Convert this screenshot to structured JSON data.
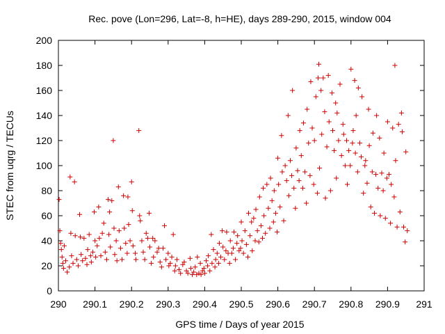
{
  "chart_data": {
    "type": "scatter",
    "title": "Rec. pove (Lon=296, Lat=-8, h=HE), days 289-290, 2015, window 004",
    "xlabel": "GPS time / Days of year 2015",
    "ylabel": "STEC from uqrg / TECUs",
    "xlim": [
      290,
      291
    ],
    "ylim": [
      0,
      200
    ],
    "x_ticks": [
      290,
      290.1,
      290.2,
      290.3,
      290.4,
      290.5,
      290.6,
      290.7,
      290.8,
      290.9,
      291
    ],
    "x_tick_labels": [
      "290",
      "290.1",
      "290.2",
      "290.3",
      "290.4",
      "290.5",
      "290.6",
      "290.7",
      "290.8",
      "290.9",
      "291"
    ],
    "y_ticks": [
      0,
      20,
      40,
      60,
      80,
      100,
      120,
      140,
      160,
      180,
      200
    ],
    "y_tick_labels": [
      "0",
      "20",
      "40",
      "60",
      "80",
      "100",
      "120",
      "140",
      "160",
      "180",
      "200"
    ],
    "grid": false,
    "marker": "plus",
    "color": "#cc0000",
    "points": [
      [
        290.002,
        73
      ],
      [
        290.004,
        48
      ],
      [
        290.006,
        38
      ],
      [
        290.008,
        33
      ],
      [
        290.01,
        27
      ],
      [
        290.012,
        22
      ],
      [
        290.014,
        18
      ],
      [
        290.016,
        36
      ],
      [
        290.02,
        24
      ],
      [
        290.024,
        15
      ],
      [
        290.03,
        19
      ],
      [
        290.032,
        91
      ],
      [
        290.034,
        46
      ],
      [
        290.036,
        28
      ],
      [
        290.04,
        22
      ],
      [
        290.044,
        87
      ],
      [
        290.046,
        44
      ],
      [
        290.05,
        25
      ],
      [
        290.054,
        20
      ],
      [
        290.058,
        61
      ],
      [
        290.06,
        43
      ],
      [
        290.062,
        29
      ],
      [
        290.066,
        24
      ],
      [
        290.07,
        42
      ],
      [
        290.074,
        26
      ],
      [
        290.078,
        21
      ],
      [
        290.08,
        33
      ],
      [
        290.084,
        45
      ],
      [
        290.088,
        28
      ],
      [
        290.09,
        23
      ],
      [
        290.094,
        31
      ],
      [
        290.098,
        63
      ],
      [
        290.1,
        40
      ],
      [
        290.102,
        27
      ],
      [
        290.106,
        36
      ],
      [
        290.11,
        67
      ],
      [
        290.112,
        42
      ],
      [
        290.116,
        28
      ],
      [
        290.12,
        46
      ],
      [
        290.124,
        54
      ],
      [
        290.128,
        31
      ],
      [
        290.132,
        25
      ],
      [
        290.136,
        73
      ],
      [
        290.138,
        45
      ],
      [
        290.14,
        63
      ],
      [
        290.142,
        35
      ],
      [
        290.146,
        72
      ],
      [
        290.15,
        120
      ],
      [
        290.152,
        50
      ],
      [
        290.154,
        29
      ],
      [
        290.158,
        40
      ],
      [
        290.16,
        24
      ],
      [
        290.164,
        83
      ],
      [
        290.166,
        48
      ],
      [
        290.17,
        34
      ],
      [
        290.174,
        25
      ],
      [
        290.178,
        76
      ],
      [
        290.18,
        50
      ],
      [
        290.184,
        38
      ],
      [
        290.188,
        30
      ],
      [
        290.19,
        75
      ],
      [
        290.192,
        53
      ],
      [
        290.196,
        40
      ],
      [
        290.2,
        87
      ],
      [
        290.202,
        64
      ],
      [
        290.204,
        36
      ],
      [
        290.21,
        30
      ],
      [
        290.212,
        25
      ],
      [
        290.22,
        128
      ],
      [
        290.222,
        60
      ],
      [
        290.224,
        56
      ],
      [
        290.228,
        40
      ],
      [
        290.232,
        31
      ],
      [
        290.236,
        25
      ],
      [
        290.24,
        46
      ],
      [
        290.244,
        42
      ],
      [
        290.248,
        62
      ],
      [
        290.25,
        35
      ],
      [
        290.254,
        22
      ],
      [
        290.258,
        42
      ],
      [
        290.26,
        27
      ],
      [
        290.264,
        40
      ],
      [
        290.27,
        31
      ],
      [
        290.274,
        34
      ],
      [
        290.278,
        23
      ],
      [
        290.282,
        19
      ],
      [
        290.286,
        34
      ],
      [
        290.29,
        52
      ],
      [
        290.294,
        25
      ],
      [
        290.3,
        30
      ],
      [
        290.302,
        20
      ],
      [
        290.306,
        22
      ],
      [
        290.31,
        27
      ],
      [
        290.314,
        45
      ],
      [
        290.318,
        16
      ],
      [
        290.32,
        20
      ],
      [
        290.324,
        25
      ],
      [
        290.33,
        17
      ],
      [
        290.334,
        14
      ],
      [
        290.34,
        21
      ],
      [
        290.344,
        23
      ],
      [
        290.35,
        16
      ],
      [
        290.354,
        14
      ],
      [
        290.36,
        26
      ],
      [
        290.362,
        18
      ],
      [
        290.366,
        13
      ],
      [
        290.37,
        15
      ],
      [
        290.374,
        19
      ],
      [
        290.378,
        13
      ],
      [
        290.38,
        27
      ],
      [
        290.384,
        14
      ],
      [
        290.388,
        22
      ],
      [
        290.39,
        13
      ],
      [
        290.394,
        16
      ],
      [
        290.398,
        18
      ],
      [
        290.4,
        14
      ],
      [
        290.404,
        24
      ],
      [
        290.408,
        20
      ],
      [
        290.41,
        28
      ],
      [
        290.414,
        16
      ],
      [
        290.418,
        45
      ],
      [
        290.42,
        22
      ],
      [
        290.424,
        33
      ],
      [
        290.428,
        19
      ],
      [
        290.43,
        25
      ],
      [
        290.434,
        30
      ],
      [
        290.438,
        22
      ],
      [
        290.44,
        38
      ],
      [
        290.444,
        27
      ],
      [
        290.448,
        48
      ],
      [
        290.45,
        35
      ],
      [
        290.454,
        25
      ],
      [
        290.458,
        32
      ],
      [
        290.46,
        47
      ],
      [
        290.464,
        30
      ],
      [
        290.468,
        22
      ],
      [
        290.47,
        40
      ],
      [
        290.474,
        30
      ],
      [
        290.478,
        34
      ],
      [
        290.48,
        47
      ],
      [
        290.484,
        25
      ],
      [
        290.488,
        38
      ],
      [
        290.49,
        44
      ],
      [
        290.494,
        32
      ],
      [
        290.498,
        34
      ],
      [
        290.5,
        55
      ],
      [
        290.502,
        40
      ],
      [
        290.506,
        30
      ],
      [
        290.51,
        48
      ],
      [
        290.514,
        37
      ],
      [
        290.518,
        27
      ],
      [
        290.52,
        62
      ],
      [
        290.524,
        44
      ],
      [
        290.528,
        55
      ],
      [
        290.53,
        32
      ],
      [
        290.534,
        58
      ],
      [
        290.538,
        40
      ],
      [
        290.54,
        65
      ],
      [
        290.544,
        48
      ],
      [
        290.548,
        39
      ],
      [
        290.55,
        75
      ],
      [
        290.554,
        52
      ],
      [
        290.558,
        42
      ],
      [
        290.56,
        82
      ],
      [
        290.562,
        60
      ],
      [
        290.566,
        46
      ],
      [
        290.57,
        85
      ],
      [
        290.574,
        66
      ],
      [
        290.578,
        50
      ],
      [
        290.58,
        90
      ],
      [
        290.584,
        72
      ],
      [
        290.588,
        55
      ],
      [
        290.59,
        80
      ],
      [
        290.594,
        62
      ],
      [
        290.598,
        47
      ],
      [
        290.6,
        106
      ],
      [
        290.602,
        85
      ],
      [
        290.606,
        67
      ],
      [
        290.61,
        124
      ],
      [
        290.612,
        95
      ],
      [
        290.616,
        56
      ],
      [
        290.62,
        100
      ],
      [
        290.624,
        88
      ],
      [
        290.628,
        140
      ],
      [
        290.63,
        76
      ],
      [
        290.634,
        104
      ],
      [
        290.638,
        92
      ],
      [
        290.64,
        160
      ],
      [
        290.644,
        82
      ],
      [
        290.648,
        66
      ],
      [
        290.65,
        114
      ],
      [
        290.654,
        96
      ],
      [
        290.658,
        88
      ],
      [
        290.66,
        128
      ],
      [
        290.664,
        108
      ],
      [
        290.668,
        82
      ],
      [
        290.67,
        134
      ],
      [
        290.674,
        95
      ],
      [
        290.678,
        70
      ],
      [
        290.68,
        145
      ],
      [
        290.684,
        118
      ],
      [
        290.688,
        92
      ],
      [
        290.69,
        167
      ],
      [
        290.694,
        130
      ],
      [
        290.698,
        85
      ],
      [
        290.7,
        120
      ],
      [
        290.704,
        155
      ],
      [
        290.708,
        78
      ],
      [
        290.71,
        170
      ],
      [
        290.712,
        181
      ],
      [
        290.714,
        98
      ],
      [
        290.718,
        160
      ],
      [
        290.72,
        125
      ],
      [
        290.724,
        170
      ],
      [
        290.728,
        143
      ],
      [
        290.73,
        74
      ],
      [
        290.734,
        115
      ],
      [
        290.738,
        172
      ],
      [
        290.74,
        135
      ],
      [
        290.744,
        80
      ],
      [
        290.748,
        158
      ],
      [
        290.75,
        128
      ],
      [
        290.754,
        112
      ],
      [
        290.758,
        150
      ],
      [
        290.76,
        90
      ],
      [
        290.762,
        142
      ],
      [
        290.766,
        120
      ],
      [
        290.77,
        165
      ],
      [
        290.774,
        108
      ],
      [
        290.778,
        133
      ],
      [
        290.78,
        125
      ],
      [
        290.784,
        100
      ],
      [
        290.788,
        120
      ],
      [
        290.79,
        85
      ],
      [
        290.794,
        112
      ],
      [
        290.798,
        100
      ],
      [
        290.8,
        177
      ],
      [
        290.804,
        118
      ],
      [
        290.806,
        128
      ],
      [
        290.81,
        168
      ],
      [
        290.812,
        110
      ],
      [
        290.814,
        140
      ],
      [
        290.818,
        95
      ],
      [
        290.82,
        162
      ],
      [
        290.824,
        118
      ],
      [
        290.828,
        107
      ],
      [
        290.83,
        155
      ],
      [
        290.834,
        78
      ],
      [
        290.838,
        100
      ],
      [
        290.84,
        104
      ],
      [
        290.844,
        86
      ],
      [
        290.848,
        145
      ],
      [
        290.85,
        116
      ],
      [
        290.854,
        67
      ],
      [
        290.858,
        95
      ],
      [
        290.86,
        126
      ],
      [
        290.864,
        62
      ],
      [
        290.868,
        93
      ],
      [
        290.87,
        140
      ],
      [
        290.874,
        82
      ],
      [
        290.878,
        122
      ],
      [
        290.88,
        60
      ],
      [
        290.884,
        94
      ],
      [
        290.888,
        80
      ],
      [
        290.89,
        110
      ],
      [
        290.894,
        58
      ],
      [
        290.898,
        90
      ],
      [
        290.9,
        135
      ],
      [
        290.904,
        93
      ],
      [
        290.908,
        54
      ],
      [
        290.91,
        85
      ],
      [
        290.914,
        130
      ],
      [
        290.918,
        75
      ],
      [
        290.92,
        180
      ],
      [
        290.922,
        104
      ],
      [
        290.926,
        51
      ],
      [
        290.93,
        133
      ],
      [
        290.934,
        63
      ],
      [
        290.938,
        142
      ],
      [
        290.94,
        127
      ],
      [
        290.944,
        51
      ],
      [
        290.948,
        39
      ],
      [
        290.95,
        111
      ],
      [
        290.954,
        48
      ]
    ]
  }
}
